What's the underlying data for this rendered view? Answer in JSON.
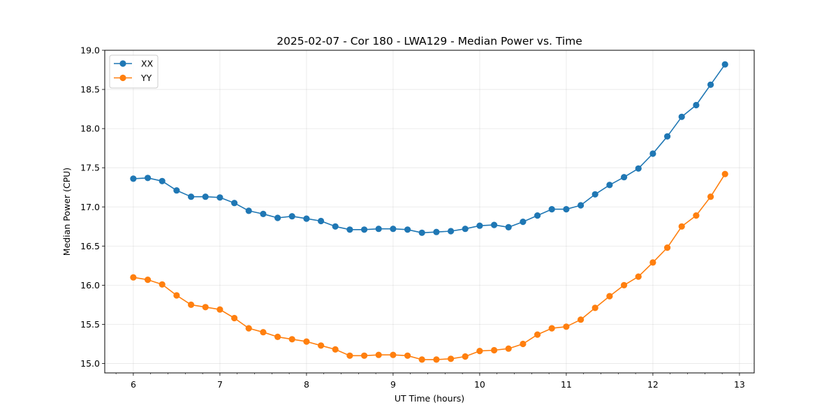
{
  "chart_data": {
    "type": "line",
    "title": "2025-02-07 - Cor 180 - LWA129 - Median Power vs. Time",
    "xlabel": "UT Time (hours)",
    "ylabel": "Median Power (CPU)",
    "xlim": [
      5.67,
      13.17
    ],
    "ylim": [
      14.88,
      19.0
    ],
    "xticks": [
      6,
      7,
      8,
      9,
      10,
      11,
      12,
      13
    ],
    "xtick_labels": [
      "6",
      "7",
      "8",
      "9",
      "10",
      "11",
      "12",
      "13"
    ],
    "yticks": [
      15.0,
      15.5,
      16.0,
      16.5,
      17.0,
      17.5,
      18.0,
      18.5,
      19.0
    ],
    "ytick_labels": [
      "15.0",
      "15.5",
      "16.0",
      "16.5",
      "17.0",
      "17.5",
      "18.0",
      "18.5",
      "19.0"
    ],
    "grid": true,
    "legend_position": "top-left",
    "x": [
      6.0,
      6.167,
      6.333,
      6.5,
      6.667,
      6.833,
      7.0,
      7.167,
      7.333,
      7.5,
      7.667,
      7.833,
      8.0,
      8.167,
      8.333,
      8.5,
      8.667,
      8.833,
      9.0,
      9.167,
      9.333,
      9.5,
      9.667,
      9.833,
      10.0,
      10.167,
      10.333,
      10.5,
      10.667,
      10.833,
      11.0,
      11.167,
      11.333,
      11.5,
      11.667,
      11.833,
      12.0,
      12.167,
      12.333,
      12.5,
      12.667,
      12.833
    ],
    "series": [
      {
        "name": "XX",
        "color": "#1f77b4",
        "values": [
          17.36,
          17.37,
          17.33,
          17.21,
          17.13,
          17.13,
          17.12,
          17.05,
          16.95,
          16.91,
          16.86,
          16.88,
          16.85,
          16.82,
          16.75,
          16.71,
          16.71,
          16.72,
          16.72,
          16.71,
          16.67,
          16.68,
          16.69,
          16.72,
          16.76,
          16.77,
          16.74,
          16.81,
          16.89,
          16.97,
          16.97,
          17.02,
          17.16,
          17.28,
          17.38,
          17.49,
          17.68,
          17.9,
          18.15,
          18.3,
          18.56,
          18.82
        ]
      },
      {
        "name": "YY",
        "color": "#ff7f0e",
        "values": [
          16.1,
          16.07,
          16.01,
          15.87,
          15.75,
          15.72,
          15.69,
          15.58,
          15.45,
          15.4,
          15.34,
          15.31,
          15.28,
          15.23,
          15.18,
          15.1,
          15.1,
          15.11,
          15.11,
          15.1,
          15.05,
          15.05,
          15.06,
          15.09,
          15.16,
          15.17,
          15.19,
          15.25,
          15.37,
          15.45,
          15.47,
          15.56,
          15.71,
          15.86,
          16.0,
          16.11,
          16.29,
          16.48,
          16.75,
          16.89,
          17.13,
          17.42
        ]
      }
    ]
  }
}
